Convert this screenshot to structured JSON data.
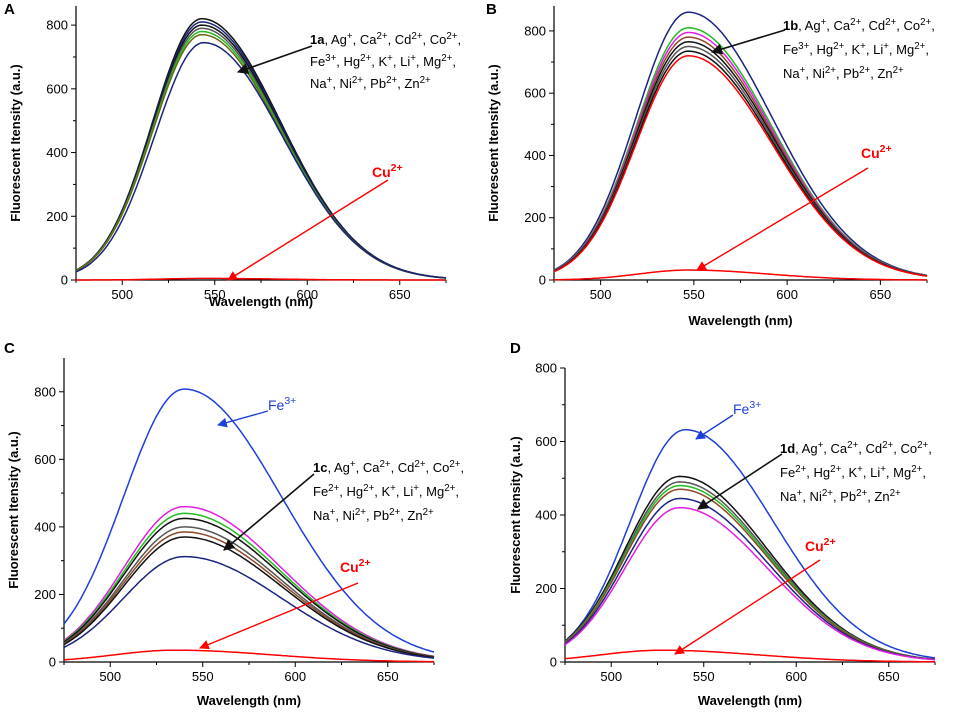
{
  "colors": {
    "red": "#ff0000",
    "blue": "#1f3fd9",
    "navy": "#1a237e",
    "black": "#111111",
    "green": "#22bb22",
    "magenta": "#e020e0",
    "olive": "#6a6a10",
    "brown": "#8b4a2b",
    "gray": "#555555"
  },
  "chart_data": [
    {
      "panel": "A",
      "type": "line",
      "xlabel": "Wavelength (nm)",
      "ylabel": "Fluorescent Itensity (a.u.)",
      "xlim": [
        475,
        675
      ],
      "ylim": [
        0,
        860
      ],
      "xticks": [
        500,
        550,
        600,
        650
      ],
      "yticks": [
        0,
        200,
        400,
        600,
        800
      ],
      "series": [
        {
          "name": "1a",
          "peak_x": 543,
          "peak_y": 820,
          "width": 34,
          "color": "black"
        },
        {
          "name": "Ag+",
          "peak_x": 543,
          "peak_y": 810,
          "width": 34,
          "color": "navy"
        },
        {
          "name": "Ca2+",
          "peak_x": 543,
          "peak_y": 800,
          "width": 34,
          "color": "black"
        },
        {
          "name": "Cd2+",
          "peak_x": 543,
          "peak_y": 790,
          "width": 34,
          "color": "gray"
        },
        {
          "name": "Co2+",
          "peak_x": 543,
          "peak_y": 780,
          "width": 34,
          "color": "green"
        },
        {
          "name": "Fe3+",
          "peak_x": 543,
          "peak_y": 770,
          "width": 34,
          "color": "olive"
        },
        {
          "name": "Hg2+",
          "peak_x": 544,
          "peak_y": 745,
          "width": 34,
          "color": "navy"
        },
        {
          "name": "Cu2+",
          "peak_x": 545,
          "peak_y": 5,
          "width": 30,
          "color": "red"
        }
      ],
      "annotations": [
        {
          "id": "label",
          "bold": "1a",
          "lines": [
            ", Ag⁺, Ca²⁺, Cd²⁺, Co²⁺,",
            "Fe³⁺, Hg²⁺, K⁺, Li⁺, Mg²⁺,",
            "Na⁺, Ni²⁺, Pb²⁺, Zn²⁺"
          ],
          "color": "black"
        },
        {
          "id": "cu",
          "text": "Cu²⁺",
          "color": "red"
        }
      ]
    },
    {
      "panel": "B",
      "type": "line",
      "xlabel": "Wavelength (nm)",
      "ylabel": "Fluorescent Itensity (a.u.)",
      "xlim": [
        475,
        675
      ],
      "ylim": [
        0,
        880
      ],
      "xticks": [
        500,
        550,
        600,
        650
      ],
      "yticks": [
        0,
        200,
        400,
        600,
        800
      ],
      "series": [
        {
          "name": "1b",
          "peak_x": 547,
          "peak_y": 860,
          "width": 36,
          "color": "navy"
        },
        {
          "name": "Ag+",
          "peak_x": 547,
          "peak_y": 810,
          "width": 36,
          "color": "green"
        },
        {
          "name": "Ca2+",
          "peak_x": 547,
          "peak_y": 795,
          "width": 36,
          "color": "magenta"
        },
        {
          "name": "Cd2+",
          "peak_x": 547,
          "peak_y": 780,
          "width": 36,
          "color": "brown"
        },
        {
          "name": "Co2+",
          "peak_x": 547,
          "peak_y": 765,
          "width": 36,
          "color": "black"
        },
        {
          "name": "Fe3+",
          "peak_x": 547,
          "peak_y": 750,
          "width": 36,
          "color": "gray"
        },
        {
          "name": "Hg2+",
          "peak_x": 547,
          "peak_y": 735,
          "width": 36,
          "color": "black"
        },
        {
          "name": "K+",
          "peak_x": 547,
          "peak_y": 720,
          "width": 36,
          "color": "red"
        },
        {
          "name": "Cu2+",
          "peak_x": 547,
          "peak_y": 32,
          "width": 34,
          "color": "red"
        }
      ],
      "annotations": [
        {
          "id": "label",
          "bold": "1b",
          "lines": [
            ", Ag⁺, Ca²⁺, Cd²⁺, Co²⁺,",
            "Fe³⁺, Hg²⁺, K⁺, Li⁺, Mg²⁺,",
            "Na⁺, Ni²⁺, Pb²⁺, Zn²⁺"
          ],
          "color": "black"
        },
        {
          "id": "cu",
          "text": "Cu²⁺",
          "color": "red"
        }
      ]
    },
    {
      "panel": "C",
      "type": "line",
      "xlabel": "Wavelength (nm)",
      "ylabel": "Fluorescent Itensity (a.u.)",
      "xlim": [
        475,
        675
      ],
      "ylim": [
        0,
        900
      ],
      "xticks": [
        500,
        550,
        600,
        650
      ],
      "yticks": [
        0,
        200,
        400,
        600,
        800
      ],
      "series": [
        {
          "name": "Fe3+",
          "peak_x": 540,
          "peak_y": 808,
          "width": 42,
          "color": "blue"
        },
        {
          "name": "Ag+",
          "peak_x": 540,
          "peak_y": 460,
          "width": 42,
          "color": "magenta"
        },
        {
          "name": "Ca2+",
          "peak_x": 540,
          "peak_y": 440,
          "width": 42,
          "color": "green"
        },
        {
          "name": "Cd2+",
          "peak_x": 540,
          "peak_y": 425,
          "width": 42,
          "color": "black"
        },
        {
          "name": "Co2+",
          "peak_x": 540,
          "peak_y": 400,
          "width": 42,
          "color": "gray"
        },
        {
          "name": "Fe2+",
          "peak_x": 540,
          "peak_y": 385,
          "width": 42,
          "color": "brown"
        },
        {
          "name": "Hg2+",
          "peak_x": 540,
          "peak_y": 370,
          "width": 42,
          "color": "black"
        },
        {
          "name": "1c",
          "peak_x": 540,
          "peak_y": 312,
          "width": 42,
          "color": "navy"
        },
        {
          "name": "Cu2+",
          "peak_x": 535,
          "peak_y": 35,
          "width": 42,
          "color": "red"
        }
      ],
      "annotations": [
        {
          "id": "fe",
          "text": "Fe³⁺",
          "color": "blue"
        },
        {
          "id": "label",
          "bold": "1c",
          "lines": [
            ", Ag⁺, Ca²⁺, Cd²⁺, Co²⁺,",
            "Fe²⁺, Hg²⁺, K⁺, Li⁺, Mg²⁺,",
            "Na⁺, Ni²⁺, Pb²⁺, Zn²⁺"
          ],
          "color": "black"
        },
        {
          "id": "cu",
          "text": "Cu²⁺",
          "color": "red"
        }
      ]
    },
    {
      "panel": "D",
      "type": "line",
      "xlabel": "Wavelength (nm)",
      "ylabel": "Fluorescent Itensity (a.u.)",
      "xlim": [
        475,
        675
      ],
      "ylim": [
        0,
        800
      ],
      "xticks": [
        500,
        550,
        600,
        650
      ],
      "yticks": [
        0,
        200,
        400,
        600,
        800
      ],
      "series": [
        {
          "name": "Fe3+",
          "peak_x": 540,
          "peak_y": 632,
          "width": 38,
          "color": "blue"
        },
        {
          "name": "1d",
          "peak_x": 537,
          "peak_y": 505,
          "width": 38,
          "color": "black"
        },
        {
          "name": "Ag+",
          "peak_x": 537,
          "peak_y": 490,
          "width": 38,
          "color": "gray"
        },
        {
          "name": "Ca2+",
          "peak_x": 537,
          "peak_y": 480,
          "width": 38,
          "color": "green"
        },
        {
          "name": "Cd2+",
          "peak_x": 537,
          "peak_y": 470,
          "width": 38,
          "color": "brown"
        },
        {
          "name": "Co2+",
          "peak_x": 537,
          "peak_y": 445,
          "width": 38,
          "color": "navy"
        },
        {
          "name": "Fe2+",
          "peak_x": 537,
          "peak_y": 420,
          "width": 38,
          "color": "magenta"
        },
        {
          "name": "Cu2+",
          "peak_x": 527,
          "peak_y": 32,
          "width": 42,
          "color": "red"
        }
      ],
      "annotations": [
        {
          "id": "fe",
          "text": "Fe³⁺",
          "color": "blue"
        },
        {
          "id": "label",
          "bold": "1d",
          "lines": [
            ", Ag⁺, Ca²⁺, Cd²⁺, Co²⁺,",
            "Fe²⁺, Hg²⁺, K⁺, Li⁺, Mg²⁺,",
            "Na⁺, Ni²⁺, Pb²⁺, Zn²⁺"
          ],
          "color": "black"
        },
        {
          "id": "cu",
          "text": "Cu²⁺",
          "color": "red"
        }
      ]
    }
  ]
}
